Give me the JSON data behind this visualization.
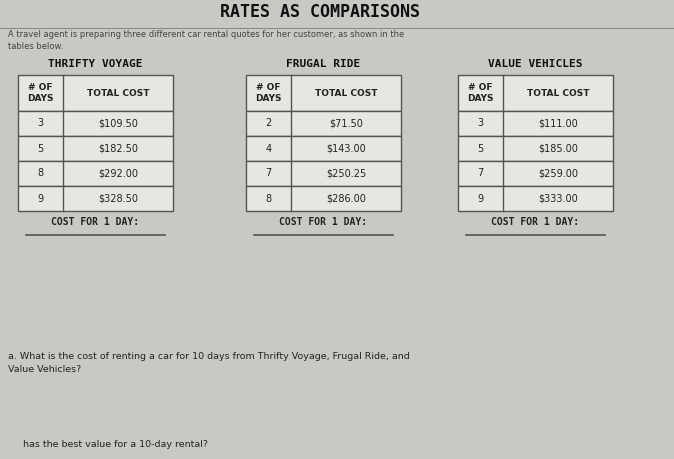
{
  "title": "RATES AS COMPARISONS",
  "subtitle": "A travel agent is preparing three different car rental quotes for her customer, as shown in the\ntables below.",
  "table1_title": "THRIFTY VOYAGE",
  "table1_headers": [
    "# OF\nDAYS",
    "TOTAL COST"
  ],
  "table1_data": [
    [
      "3",
      "$109.50"
    ],
    [
      "5",
      "$182.50"
    ],
    [
      "8",
      "$292.00"
    ],
    [
      "9",
      "$328.50"
    ]
  ],
  "table1_footer": "COST FOR 1 DAY:",
  "table2_title": "FRUGAL RIDE",
  "table2_headers": [
    "# OF\nDAYS",
    "TOTAL COST"
  ],
  "table2_data": [
    [
      "2",
      "$71.50"
    ],
    [
      "4",
      "$143.00"
    ],
    [
      "7",
      "$250.25"
    ],
    [
      "8",
      "$286.00"
    ]
  ],
  "table2_footer": "COST FOR 1 DAY:",
  "table3_title": "VALUE VEHICLES",
  "table3_headers": [
    "# OF\nDAYS",
    "TOTAL COST"
  ],
  "table3_data": [
    [
      "3",
      "$111.00"
    ],
    [
      "5",
      "$185.00"
    ],
    [
      "7",
      "$259.00"
    ],
    [
      "9",
      "$333.00"
    ]
  ],
  "table3_footer": "COST FOR 1 DAY:",
  "question_a": "a. What is the cost of renting a car for 10 days from Thrifty Voyage, Frugal Ride, and\nValue Vehicles?",
  "question_b": "     has the best value for a 10-day rental?",
  "bg_color": "#c8c8c4",
  "table_bg": "#e8e6e0",
  "header_bg": "#e8e6e0",
  "border_color": "#555550",
  "text_color": "#222222",
  "title_color": "#111111",
  "subtitle_color": "#444444"
}
